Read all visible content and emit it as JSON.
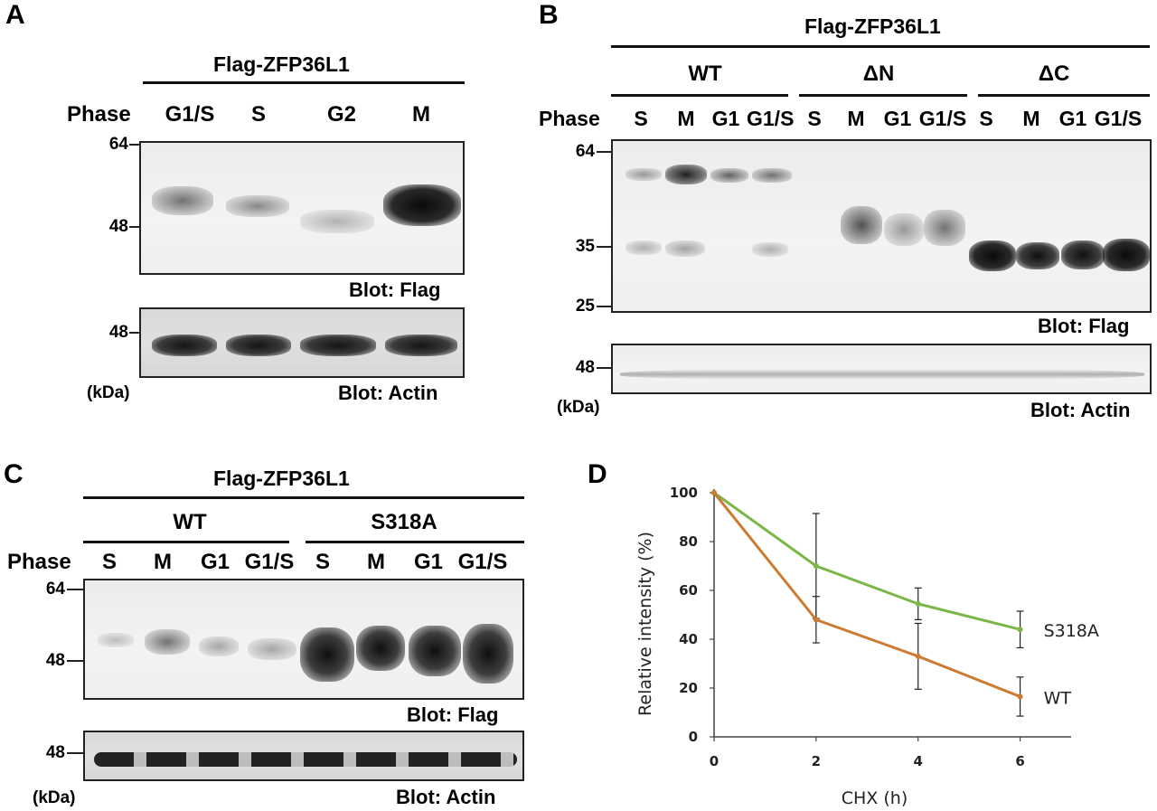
{
  "panelA": {
    "letter": "A",
    "construct": "Flag-ZFP36L1",
    "phase_label": "Phase",
    "lanes": [
      "G1/S",
      "S",
      "G2",
      "M"
    ],
    "mw_flag": [
      "64",
      "48"
    ],
    "mw_actin": [
      "48"
    ],
    "kda": "(kDa)",
    "blot_flag": "Blot: Flag",
    "blot_actin": "Blot: Actin"
  },
  "panelB": {
    "letter": "B",
    "construct": "Flag-ZFP36L1",
    "groups": [
      "WT",
      "ΔN",
      "ΔC"
    ],
    "phase_label": "Phase",
    "lanes": [
      "S",
      "M",
      "G1",
      "G1/S",
      "S",
      "M",
      "G1",
      "G1/S",
      "S",
      "M",
      "G1",
      "G1/S"
    ],
    "mw_flag": [
      "64",
      "35",
      "25"
    ],
    "mw_actin": [
      "48"
    ],
    "kda": "(kDa)",
    "blot_flag": "Blot: Flag",
    "blot_actin": "Blot: Actin"
  },
  "panelC": {
    "letter": "C",
    "construct": "Flag-ZFP36L1",
    "groups": [
      "WT",
      "S318A"
    ],
    "phase_label": "Phase",
    "lanes": [
      "S",
      "M",
      "G1",
      "G1/S",
      "S",
      "M",
      "G1",
      "G1/S"
    ],
    "mw_flag": [
      "64",
      "48"
    ],
    "mw_actin": [
      "48"
    ],
    "kda": "(kDa)",
    "blot_flag": "Blot: Flag",
    "blot_actin": "Blot: Actin"
  },
  "panelD": {
    "letter": "D"
  },
  "chart_data": {
    "type": "line",
    "title": "",
    "xlabel": "CHX (h)",
    "ylabel": "Relative intensity  (%)",
    "x": [
      0,
      2,
      4,
      6
    ],
    "xticks": [
      "0",
      "2",
      "4",
      "6"
    ],
    "yticks": [
      "0",
      "20",
      "40",
      "60",
      "80",
      "100"
    ],
    "xlim": [
      0,
      7
    ],
    "ylim": [
      0,
      100
    ],
    "grid": false,
    "series": [
      {
        "name": "S318A",
        "values": [
          100,
          70,
          54.5,
          44
        ],
        "err": [
          0,
          21.5,
          6.5,
          7.5
        ],
        "color": "#7ab648"
      },
      {
        "name": "WT",
        "values": [
          100,
          48,
          33,
          16.5
        ],
        "err": [
          0,
          9.5,
          13.5,
          8
        ],
        "color": "#cd7a33"
      }
    ]
  }
}
